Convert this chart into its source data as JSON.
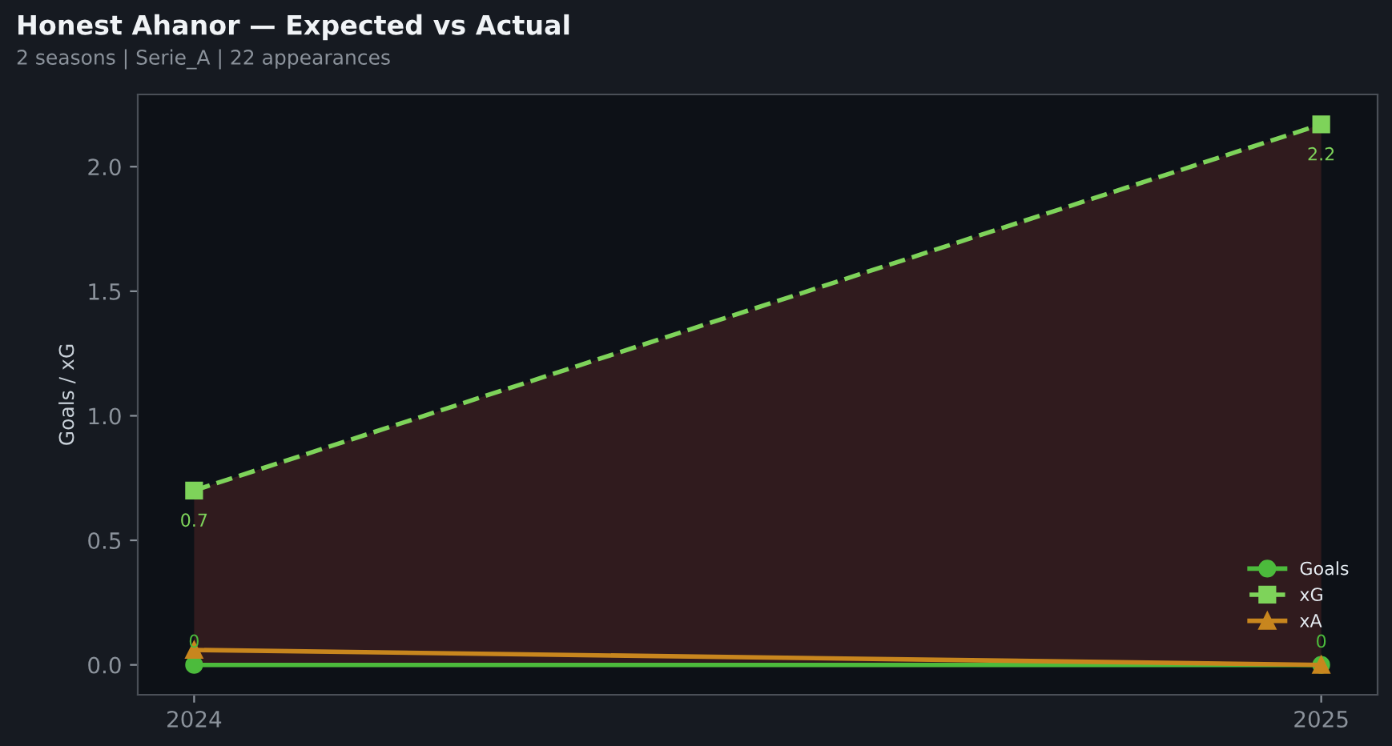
{
  "chart_data": {
    "type": "line",
    "title": "Honest Ahanor — Expected vs Actual",
    "subtitle": "2 seasons | Serie_A | 22 appearances",
    "ylabel": "Goals / xG",
    "x": [
      2024,
      2025
    ],
    "xlim": [
      2023.95,
      2025.05
    ],
    "xticks": [
      2024,
      2025
    ],
    "ylim": [
      -0.12,
      2.29
    ],
    "yticks": [
      {
        "value": 0,
        "label": "0.0"
      },
      {
        "value": 0.5,
        "label": "0.5"
      },
      {
        "value": 1,
        "label": "1.0"
      },
      {
        "value": 1.5,
        "label": "1.5"
      },
      {
        "value": 2,
        "label": "2.0"
      }
    ],
    "series": [
      {
        "name": "Goals",
        "color": "#4cbb3c",
        "values": [
          0,
          0
        ],
        "marker": "circle",
        "line_style": "solid",
        "value_labels": [
          "0",
          "0"
        ]
      },
      {
        "name": "xG",
        "color": "#7ed35a",
        "values": [
          0.7,
          2.17
        ],
        "marker": "square",
        "line_style": "dashed",
        "value_labels": [
          "0.7",
          "2.2"
        ],
        "lower": [
          0,
          0
        ],
        "upper": [
          0.7,
          2.17
        ]
      },
      {
        "name": "xA",
        "color": "#c8861e",
        "values": [
          0.06,
          0
        ],
        "marker": "triangle",
        "line_style": "solid"
      }
    ],
    "grid": false,
    "legend": "bottom right"
  }
}
